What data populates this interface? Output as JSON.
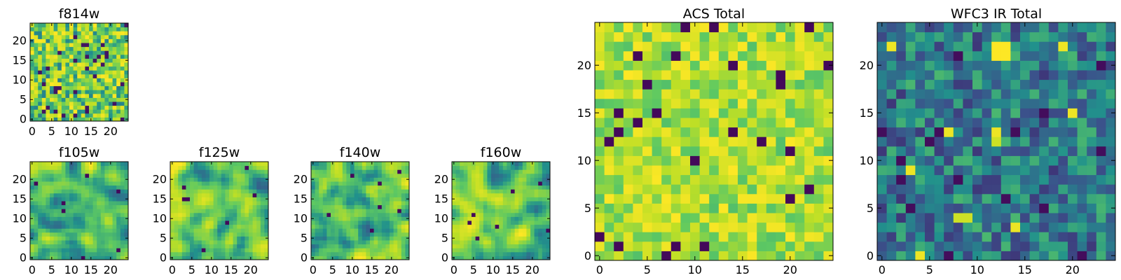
{
  "colormap": [
    "#440154",
    "#3b528b",
    "#21918c",
    "#5ec962",
    "#bddf26",
    "#fde725"
  ],
  "chart_data": [
    {
      "type": "heatmap",
      "name": "f814w",
      "title": "f814w",
      "grid": [
        25,
        25
      ],
      "pattern": "noise",
      "seed": 11,
      "xticks": [
        "0",
        "5",
        "10",
        "15",
        "20"
      ],
      "yticks": [
        "0",
        "5",
        "10",
        "15",
        "20"
      ]
    },
    {
      "type": "heatmap",
      "name": "f105w",
      "title": "f105w",
      "grid": [
        25,
        25
      ],
      "pattern": "smooth",
      "seed": 23,
      "xticks": [
        "0",
        "5",
        "10",
        "15",
        "20"
      ],
      "yticks": [
        "0",
        "5",
        "10",
        "15",
        "20"
      ]
    },
    {
      "type": "heatmap",
      "name": "f125w",
      "title": "f125w",
      "grid": [
        25,
        25
      ],
      "pattern": "smooth",
      "seed": 37,
      "xticks": [
        "0",
        "5",
        "10",
        "15",
        "20"
      ],
      "yticks": [
        "0",
        "5",
        "10",
        "15",
        "20"
      ]
    },
    {
      "type": "heatmap",
      "name": "f140w",
      "title": "f140w",
      "grid": [
        25,
        25
      ],
      "pattern": "smooth",
      "seed": 41,
      "xticks": [
        "0",
        "5",
        "10",
        "15",
        "20"
      ],
      "yticks": [
        "0",
        "5",
        "10",
        "15",
        "20"
      ]
    },
    {
      "type": "heatmap",
      "name": "f160w",
      "title": "f160w",
      "grid": [
        25,
        25
      ],
      "pattern": "smooth",
      "seed": 53,
      "xticks": [
        "0",
        "5",
        "10",
        "15",
        "20"
      ],
      "yticks": [
        "0",
        "5",
        "10",
        "15",
        "20"
      ]
    },
    {
      "type": "heatmap",
      "name": "acs-total",
      "title": "ACS Total",
      "grid": [
        25,
        25
      ],
      "pattern": "bright",
      "seed": 67,
      "xticks": [
        "0",
        "5",
        "10",
        "15",
        "20"
      ],
      "yticks": [
        "0",
        "5",
        "10",
        "15",
        "20"
      ]
    },
    {
      "type": "heatmap",
      "name": "wfc3-ir-total",
      "title": "WFC3 IR Total",
      "grid": [
        25,
        25
      ],
      "pattern": "dark",
      "seed": 79,
      "xticks": [
        "0",
        "5",
        "10",
        "15",
        "20"
      ],
      "yticks": [
        "0",
        "5",
        "10",
        "15",
        "20"
      ]
    }
  ]
}
